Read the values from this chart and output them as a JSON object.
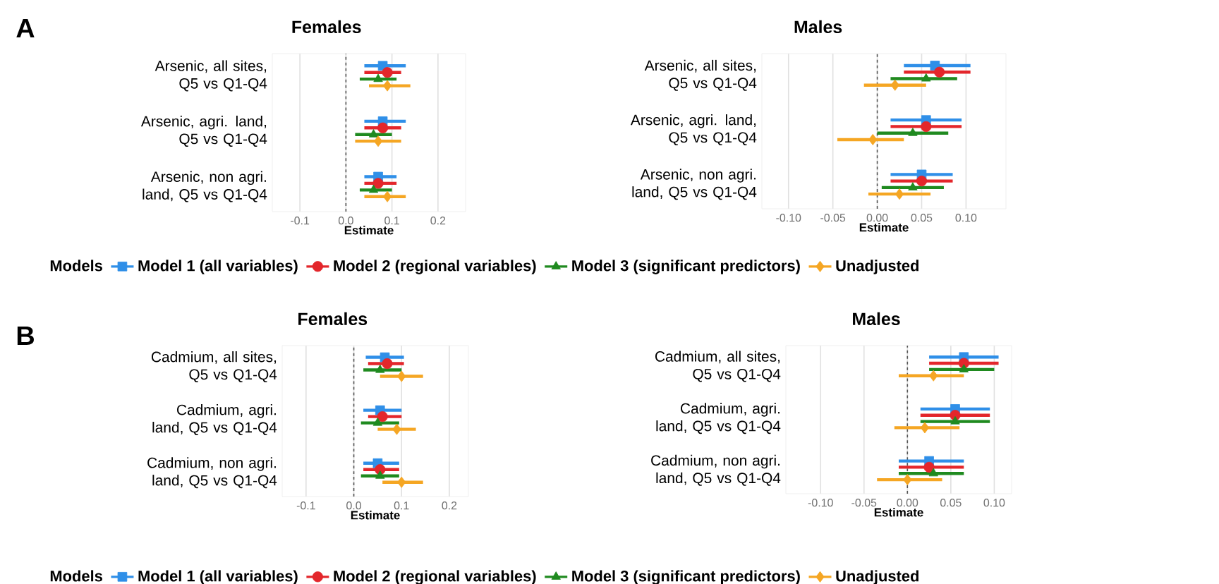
{
  "chart_data": [
    {
      "type": "scatter",
      "orientation": "horizontal",
      "title": "Females",
      "xlabel": "Estimate",
      "legend": "bottom",
      "legend_title": "Models",
      "grid": "x",
      "annotations": [
        "A"
      ],
      "categories": [
        "Arsenic, all sites, Q5 vs Q1-Q4",
        "Arsenic, agri. land, Q5 vs Q1-Q4",
        "Arsenic, non agri. land, Q5 vs Q1-Q4"
      ],
      "xlim": [
        -0.16,
        0.26
      ],
      "xticks": [
        -0.1,
        {
          "value": 0,
          "label": "0.0"
        },
        0.1,
        0.2
      ],
      "ref_lines": [
        {
          "axis": "x",
          "value": 0,
          "color": "#555555",
          "line_style": "dashed"
        }
      ],
      "series": [
        {
          "name": "Model 1 (all variables)",
          "color": "#2f8fe8",
          "marker": "square",
          "values": [
            0.08,
            0.08,
            0.07
          ],
          "errors": [
            [
              0.04,
              0.13
            ],
            [
              0.04,
              0.13
            ],
            [
              0.04,
              0.11
            ]
          ]
        },
        {
          "name": "Model 2 (regional variables)",
          "color": "#e3262b",
          "marker": "circle",
          "values": [
            0.09,
            0.08,
            0.07
          ],
          "errors": [
            [
              0.04,
              0.12
            ],
            [
              0.04,
              0.12
            ],
            [
              0.04,
              0.11
            ]
          ]
        },
        {
          "name": "Model 3 (significant predictors)",
          "color": "#1f8a1f",
          "marker": "triangle",
          "values": [
            0.07,
            0.06,
            0.06
          ],
          "errors": [
            [
              0.03,
              0.11
            ],
            [
              0.02,
              0.1
            ],
            [
              0.03,
              0.1
            ]
          ]
        },
        {
          "name": "Unadjusted",
          "color": "#f5a623",
          "marker": "diamond",
          "values": [
            0.09,
            0.07,
            0.09
          ],
          "errors": [
            [
              0.05,
              0.14
            ],
            [
              0.02,
              0.12
            ],
            [
              0.04,
              0.13
            ]
          ]
        }
      ]
    },
    {
      "type": "scatter",
      "orientation": "horizontal",
      "title": "Males",
      "xlabel": "Estimate",
      "grid": "x",
      "categories": [
        "Arsenic, all sites, Q5 vs Q1-Q4",
        "Arsenic, agri. land, Q5 vs Q1-Q4",
        "Arsenic, non agri. land, Q5 vs Q1-Q4"
      ],
      "xlim": [
        -0.13,
        0.145
      ],
      "xticks": [
        {
          "value": -0.1,
          "label": "-0.10"
        },
        {
          "value": -0.05,
          "label": "-0.05"
        },
        {
          "value": 0,
          "label": "0.00"
        },
        {
          "value": 0.05,
          "label": "0.05"
        },
        {
          "value": 0.1,
          "label": "0.10"
        }
      ],
      "ref_lines": [
        {
          "axis": "x",
          "value": 0,
          "color": "#555555",
          "line_style": "dashed"
        }
      ],
      "series": [
        {
          "color": "#2f8fe8",
          "marker": "square",
          "values": [
            0.065,
            0.055,
            0.05
          ],
          "errors": [
            [
              0.03,
              0.105
            ],
            [
              0.015,
              0.095
            ],
            [
              0.015,
              0.085
            ]
          ]
        },
        {
          "color": "#e3262b",
          "marker": "circle",
          "values": [
            0.07,
            0.055,
            0.05
          ],
          "errors": [
            [
              0.03,
              0.105
            ],
            [
              0.015,
              0.095
            ],
            [
              0.015,
              0.085
            ]
          ]
        },
        {
          "color": "#1f8a1f",
          "marker": "triangle",
          "values": [
            0.055,
            0.04,
            0.04
          ],
          "errors": [
            [
              0.015,
              0.09
            ],
            [
              0.0,
              0.08
            ],
            [
              0.005,
              0.075
            ]
          ]
        },
        {
          "color": "#f5a623",
          "marker": "diamond",
          "values": [
            0.02,
            -0.005,
            0.025
          ],
          "errors": [
            [
              -0.015,
              0.055
            ],
            [
              -0.045,
              0.03
            ],
            [
              -0.01,
              0.06
            ]
          ]
        }
      ]
    },
    {
      "type": "scatter",
      "orientation": "horizontal",
      "title": "Females",
      "xlabel": "Estimate",
      "legend": "bottom",
      "legend_title": "Models",
      "grid": "x",
      "annotations": [
        "B"
      ],
      "categories": [
        "Cadmium, all sites, Q5 vs Q1-Q4",
        "Cadmium, agri. land, Q5 vs Q1-Q4",
        "Cadmium, non agri. land, Q5 vs Q1-Q4"
      ],
      "xlim": [
        -0.15,
        0.24
      ],
      "xticks": [
        -0.1,
        {
          "value": 0,
          "label": "0.0"
        },
        0.1,
        0.2
      ],
      "ref_lines": [
        {
          "axis": "x",
          "value": 0,
          "color": "#555555",
          "line_style": "dashed"
        }
      ],
      "series": [
        {
          "name": "Model 1 (all variables)",
          "color": "#2f8fe8",
          "marker": "square",
          "values": [
            0.065,
            0.055,
            0.05
          ],
          "errors": [
            [
              0.025,
              0.105
            ],
            [
              0.02,
              0.1
            ],
            [
              0.02,
              0.095
            ]
          ]
        },
        {
          "name": "Model 2 (regional variables)",
          "color": "#e3262b",
          "marker": "circle",
          "values": [
            0.07,
            0.06,
            0.055
          ],
          "errors": [
            [
              0.03,
              0.105
            ],
            [
              0.03,
              0.1
            ],
            [
              0.02,
              0.095
            ]
          ]
        },
        {
          "name": "Model 3 (significant predictors)",
          "color": "#1f8a1f",
          "marker": "triangle",
          "values": [
            0.055,
            0.05,
            0.055
          ],
          "errors": [
            [
              0.02,
              0.1
            ],
            [
              0.015,
              0.095
            ],
            [
              0.015,
              0.095
            ]
          ]
        },
        {
          "name": "Unadjusted",
          "color": "#f5a623",
          "marker": "diamond",
          "values": [
            0.1,
            0.09,
            0.1
          ],
          "errors": [
            [
              0.055,
              0.145
            ],
            [
              0.05,
              0.13
            ],
            [
              0.06,
              0.145
            ]
          ]
        }
      ]
    },
    {
      "type": "scatter",
      "orientation": "horizontal",
      "title": "Males",
      "xlabel": "Estimate",
      "grid": "x",
      "categories": [
        "Cadmium, all sites, Q5 vs Q1-Q4",
        "Cadmium, agri. land, Q5 vs Q1-Q4",
        "Cadmium, non agri. land, Q5 vs Q1-Q4"
      ],
      "xlim": [
        -0.14,
        0.12
      ],
      "xticks": [
        {
          "value": -0.1,
          "label": "-0.10"
        },
        {
          "value": -0.05,
          "label": "-0.05"
        },
        {
          "value": 0,
          "label": "0.00"
        },
        {
          "value": 0.05,
          "label": "0.05"
        },
        {
          "value": 0.1,
          "label": "0.10"
        }
      ],
      "ref_lines": [
        {
          "axis": "x",
          "value": 0,
          "color": "#555555",
          "line_style": "dashed"
        }
      ],
      "series": [
        {
          "color": "#2f8fe8",
          "marker": "square",
          "values": [
            0.065,
            0.055,
            0.025
          ],
          "errors": [
            [
              0.025,
              0.105
            ],
            [
              0.015,
              0.095
            ],
            [
              -0.01,
              0.065
            ]
          ]
        },
        {
          "color": "#e3262b",
          "marker": "circle",
          "values": [
            0.065,
            0.055,
            0.025
          ],
          "errors": [
            [
              0.025,
              0.105
            ],
            [
              0.015,
              0.095
            ],
            [
              -0.01,
              0.065
            ]
          ]
        },
        {
          "color": "#1f8a1f",
          "marker": "triangle",
          "values": [
            0.065,
            0.055,
            0.03
          ],
          "errors": [
            [
              0.025,
              0.1
            ],
            [
              0.015,
              0.095
            ],
            [
              -0.01,
              0.065
            ]
          ]
        },
        {
          "color": "#f5a623",
          "marker": "diamond",
          "values": [
            0.03,
            0.02,
            0.0
          ],
          "errors": [
            [
              -0.01,
              0.065
            ],
            [
              -0.015,
              0.06
            ],
            [
              -0.035,
              0.04
            ]
          ]
        }
      ]
    }
  ]
}
